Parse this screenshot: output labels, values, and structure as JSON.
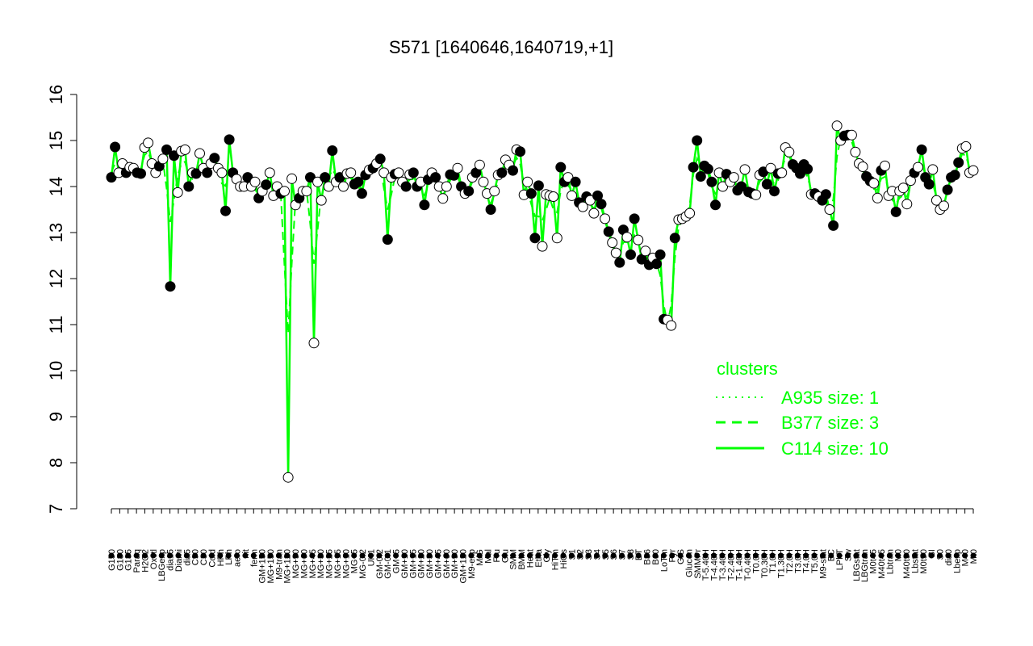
{
  "colors": {
    "line": "#00ff00",
    "point_filled": "#000000",
    "point_open": "#ffffff",
    "axis": "#000000"
  },
  "chart_data": {
    "type": "line",
    "title": "S571 [1640646,1640719,+1]",
    "xlabel": "",
    "ylabel": "",
    "ylim": [
      7,
      16
    ],
    "yticks": [
      7,
      8,
      9,
      10,
      11,
      12,
      13,
      14,
      15,
      16
    ],
    "grid": false,
    "legend": {
      "title": "clusters",
      "placement": "right",
      "entries": [
        {
          "label": "A935 size: 1",
          "style": "dotted"
        },
        {
          "label": "B377 size: 3",
          "style": "dashed"
        },
        {
          "label": "C114 size: 10",
          "style": "solid"
        }
      ]
    },
    "x_tick_labels": [
      "G150",
      "G180",
      "G135",
      "Paraq",
      "H2O2",
      "Oxctl",
      "LBGexp",
      "dia15",
      "Diami",
      "dia5",
      "C90",
      "C30",
      "Cold",
      "HPh",
      "LPh",
      "aero",
      "nit",
      "ferm",
      "GM+150",
      "MG+150",
      "M9-tran",
      "MG+120",
      "MG+90",
      "MG+60",
      "MG+45",
      "MG+30",
      "MG+25",
      "MG+15",
      "MG+10",
      "MG+5",
      "MG-0.2",
      "UK1",
      "GM-0.2",
      "GM-0.1",
      "GM+5",
      "GM+10",
      "GM+15",
      "GM+20",
      "GM+30",
      "GM+45",
      "GM+60",
      "GM+90",
      "GM+120",
      "M9-exp",
      "M/G",
      "Mal",
      "Fru",
      "Glu",
      "SMM",
      "BMM",
      "Heat",
      "Etha",
      "Gly",
      "HiTm",
      "HiOs",
      "S1",
      "S2",
      "S3",
      "S4",
      "S5",
      "S6",
      "S7",
      "S8",
      "BT",
      "B36",
      "B60",
      "LoTm",
      "Pyr",
      "G/S",
      "Glucon",
      "SMMPr",
      "T-5.40H",
      "T-4.40H",
      "T-3.40H",
      "T-2.40H",
      "T-1.40H",
      "T-0.40H",
      "T0.0H",
      "T0.30H",
      "T1.0H",
      "T1.30H",
      "T2.0H",
      "T3.0H",
      "T4.0H",
      "T5.0H",
      "M9-stat",
      "BC",
      "LPhT",
      "Sw",
      "LBGstat",
      "LBGtran",
      "M0t45",
      "M40t45",
      "Lbtran",
      "M0",
      "M40t90",
      "Lbstat",
      "M0t90",
      "BI",
      "S0",
      "dia0",
      "Lbexp",
      "M40",
      "Mt0"
    ],
    "series": [
      {
        "y": [
          14.2,
          14.86,
          14.3,
          14.5,
          14.3,
          14.42,
          14.4,
          14.3,
          14.28,
          14.85,
          14.95,
          14.5,
          14.3,
          14.44,
          14.6,
          14.8,
          11.83,
          14.67,
          13.87,
          14.77,
          14.8,
          14.0,
          14.3,
          14.28,
          14.72,
          14.4,
          14.3,
          14.5,
          14.62,
          14.4,
          14.3,
          13.47,
          15.02,
          14.3,
          14.16,
          14.0,
          14.0,
          14.2,
          14.0,
          14.1,
          13.75,
          13.9,
          14.04,
          14.3,
          13.8,
          14.0,
          13.85,
          13.9,
          7.68,
          14.17,
          13.6,
          13.75,
          13.9,
          13.9,
          14.2,
          10.6,
          14.1,
          13.7,
          14.2,
          14.0,
          14.78,
          14.1,
          14.2,
          14.0,
          14.28,
          14.3,
          14.05,
          14.1,
          13.85,
          14.25,
          14.36,
          14.4,
          14.5,
          14.6,
          14.3,
          12.85,
          14.2,
          14.27,
          14.3,
          14.1,
          14.0,
          14.26,
          14.3,
          14.0,
          14.1,
          13.6,
          14.15,
          14.3,
          14.2,
          14.0,
          13.74,
          14.0,
          14.26,
          14.24,
          14.4,
          14.0,
          13.85,
          13.9,
          14.2,
          14.3,
          14.47,
          14.1,
          13.85,
          13.5,
          13.9,
          14.25,
          14.3,
          14.58,
          14.47,
          14.35,
          14.8,
          14.76,
          13.82,
          14.1,
          13.85,
          12.88,
          14.02,
          12.7,
          13.83,
          13.8,
          13.78,
          12.88,
          14.42,
          14.1,
          14.2,
          13.8,
          14.1,
          13.65,
          13.56,
          13.78,
          13.7,
          13.42,
          13.8,
          13.62,
          13.3,
          13.02,
          12.78,
          12.56,
          12.35,
          13.06,
          12.9,
          12.52,
          13.3,
          12.84,
          12.42,
          12.6,
          12.3,
          12.45,
          12.32,
          12.52,
          11.12,
          11.1,
          10.98,
          12.88,
          13.28,
          13.3,
          13.35,
          13.42,
          14.42,
          15.0,
          14.22,
          14.45,
          14.38,
          14.1,
          13.6,
          14.3,
          14.0,
          14.27,
          14.1,
          14.2,
          13.92,
          14.0,
          14.37,
          13.88,
          13.85,
          13.82,
          14.25,
          14.32,
          14.05,
          14.4,
          13.9,
          14.28,
          14.3,
          14.85,
          14.75,
          14.48,
          14.4,
          14.28,
          14.48,
          14.38,
          13.83,
          13.85,
          13.78,
          13.7,
          13.83,
          13.5,
          13.15,
          15.32,
          15.0,
          15.1,
          15.12,
          15.12,
          14.75,
          14.5,
          14.43,
          14.22,
          14.12,
          14.07,
          13.75,
          14.35,
          14.45,
          13.8,
          13.9,
          13.45,
          13.9,
          13.97,
          13.62,
          14.13,
          14.3,
          14.42,
          14.8,
          14.2,
          14.05,
          14.37,
          13.7,
          13.5,
          13.58,
          13.93,
          14.2,
          14.25,
          14.52,
          14.83,
          14.87,
          14.3,
          14.35
        ],
        "filled": [
          1,
          1,
          0,
          0,
          1,
          0,
          0,
          1,
          1,
          0,
          0,
          0,
          0,
          1,
          0,
          1,
          1,
          1,
          0,
          0,
          0,
          1,
          0,
          1,
          0,
          0,
          1,
          0,
          1,
          0,
          0,
          1,
          1,
          1,
          0,
          0,
          0,
          1,
          0,
          0,
          1,
          0,
          1,
          0,
          0,
          0,
          1,
          0,
          0,
          0,
          0,
          1,
          0,
          0,
          1,
          0,
          0,
          0,
          1,
          0,
          1,
          0,
          1,
          0,
          0,
          0,
          1,
          1,
          1,
          1,
          0,
          1,
          0,
          1,
          0,
          1,
          0,
          1,
          0,
          0,
          1,
          0,
          1,
          1,
          0,
          1,
          1,
          0,
          1,
          0,
          0,
          0,
          1,
          1,
          0,
          1,
          0,
          1,
          0,
          1,
          0,
          0,
          0,
          1,
          0,
          0,
          1,
          0,
          0,
          1,
          0,
          1,
          0,
          0,
          1,
          1,
          1,
          0,
          0,
          0,
          0,
          0,
          1,
          1,
          0,
          0,
          1,
          1,
          0,
          1,
          0,
          0,
          1,
          1,
          0,
          1,
          0,
          0,
          1,
          1,
          0,
          1,
          1,
          0,
          1,
          0,
          1,
          0,
          1,
          1,
          1,
          0,
          0,
          1,
          0,
          0,
          0,
          0,
          1,
          1,
          1,
          1,
          1,
          1,
          1,
          0,
          0,
          1,
          0,
          0,
          1,
          1,
          0,
          1,
          1,
          0,
          0,
          1,
          1,
          0,
          1,
          1,
          0,
          0,
          0,
          1,
          1,
          1,
          1,
          1,
          0,
          1,
          0,
          1,
          1,
          0,
          1,
          0,
          0,
          1,
          1,
          0,
          0,
          0,
          0,
          1,
          1,
          0,
          0,
          1,
          0,
          0,
          0,
          1,
          0,
          0,
          0,
          0,
          1,
          0,
          1,
          1,
          1,
          0,
          0,
          0,
          0,
          1,
          1,
          1,
          1,
          0
        ]
      }
    ]
  }
}
